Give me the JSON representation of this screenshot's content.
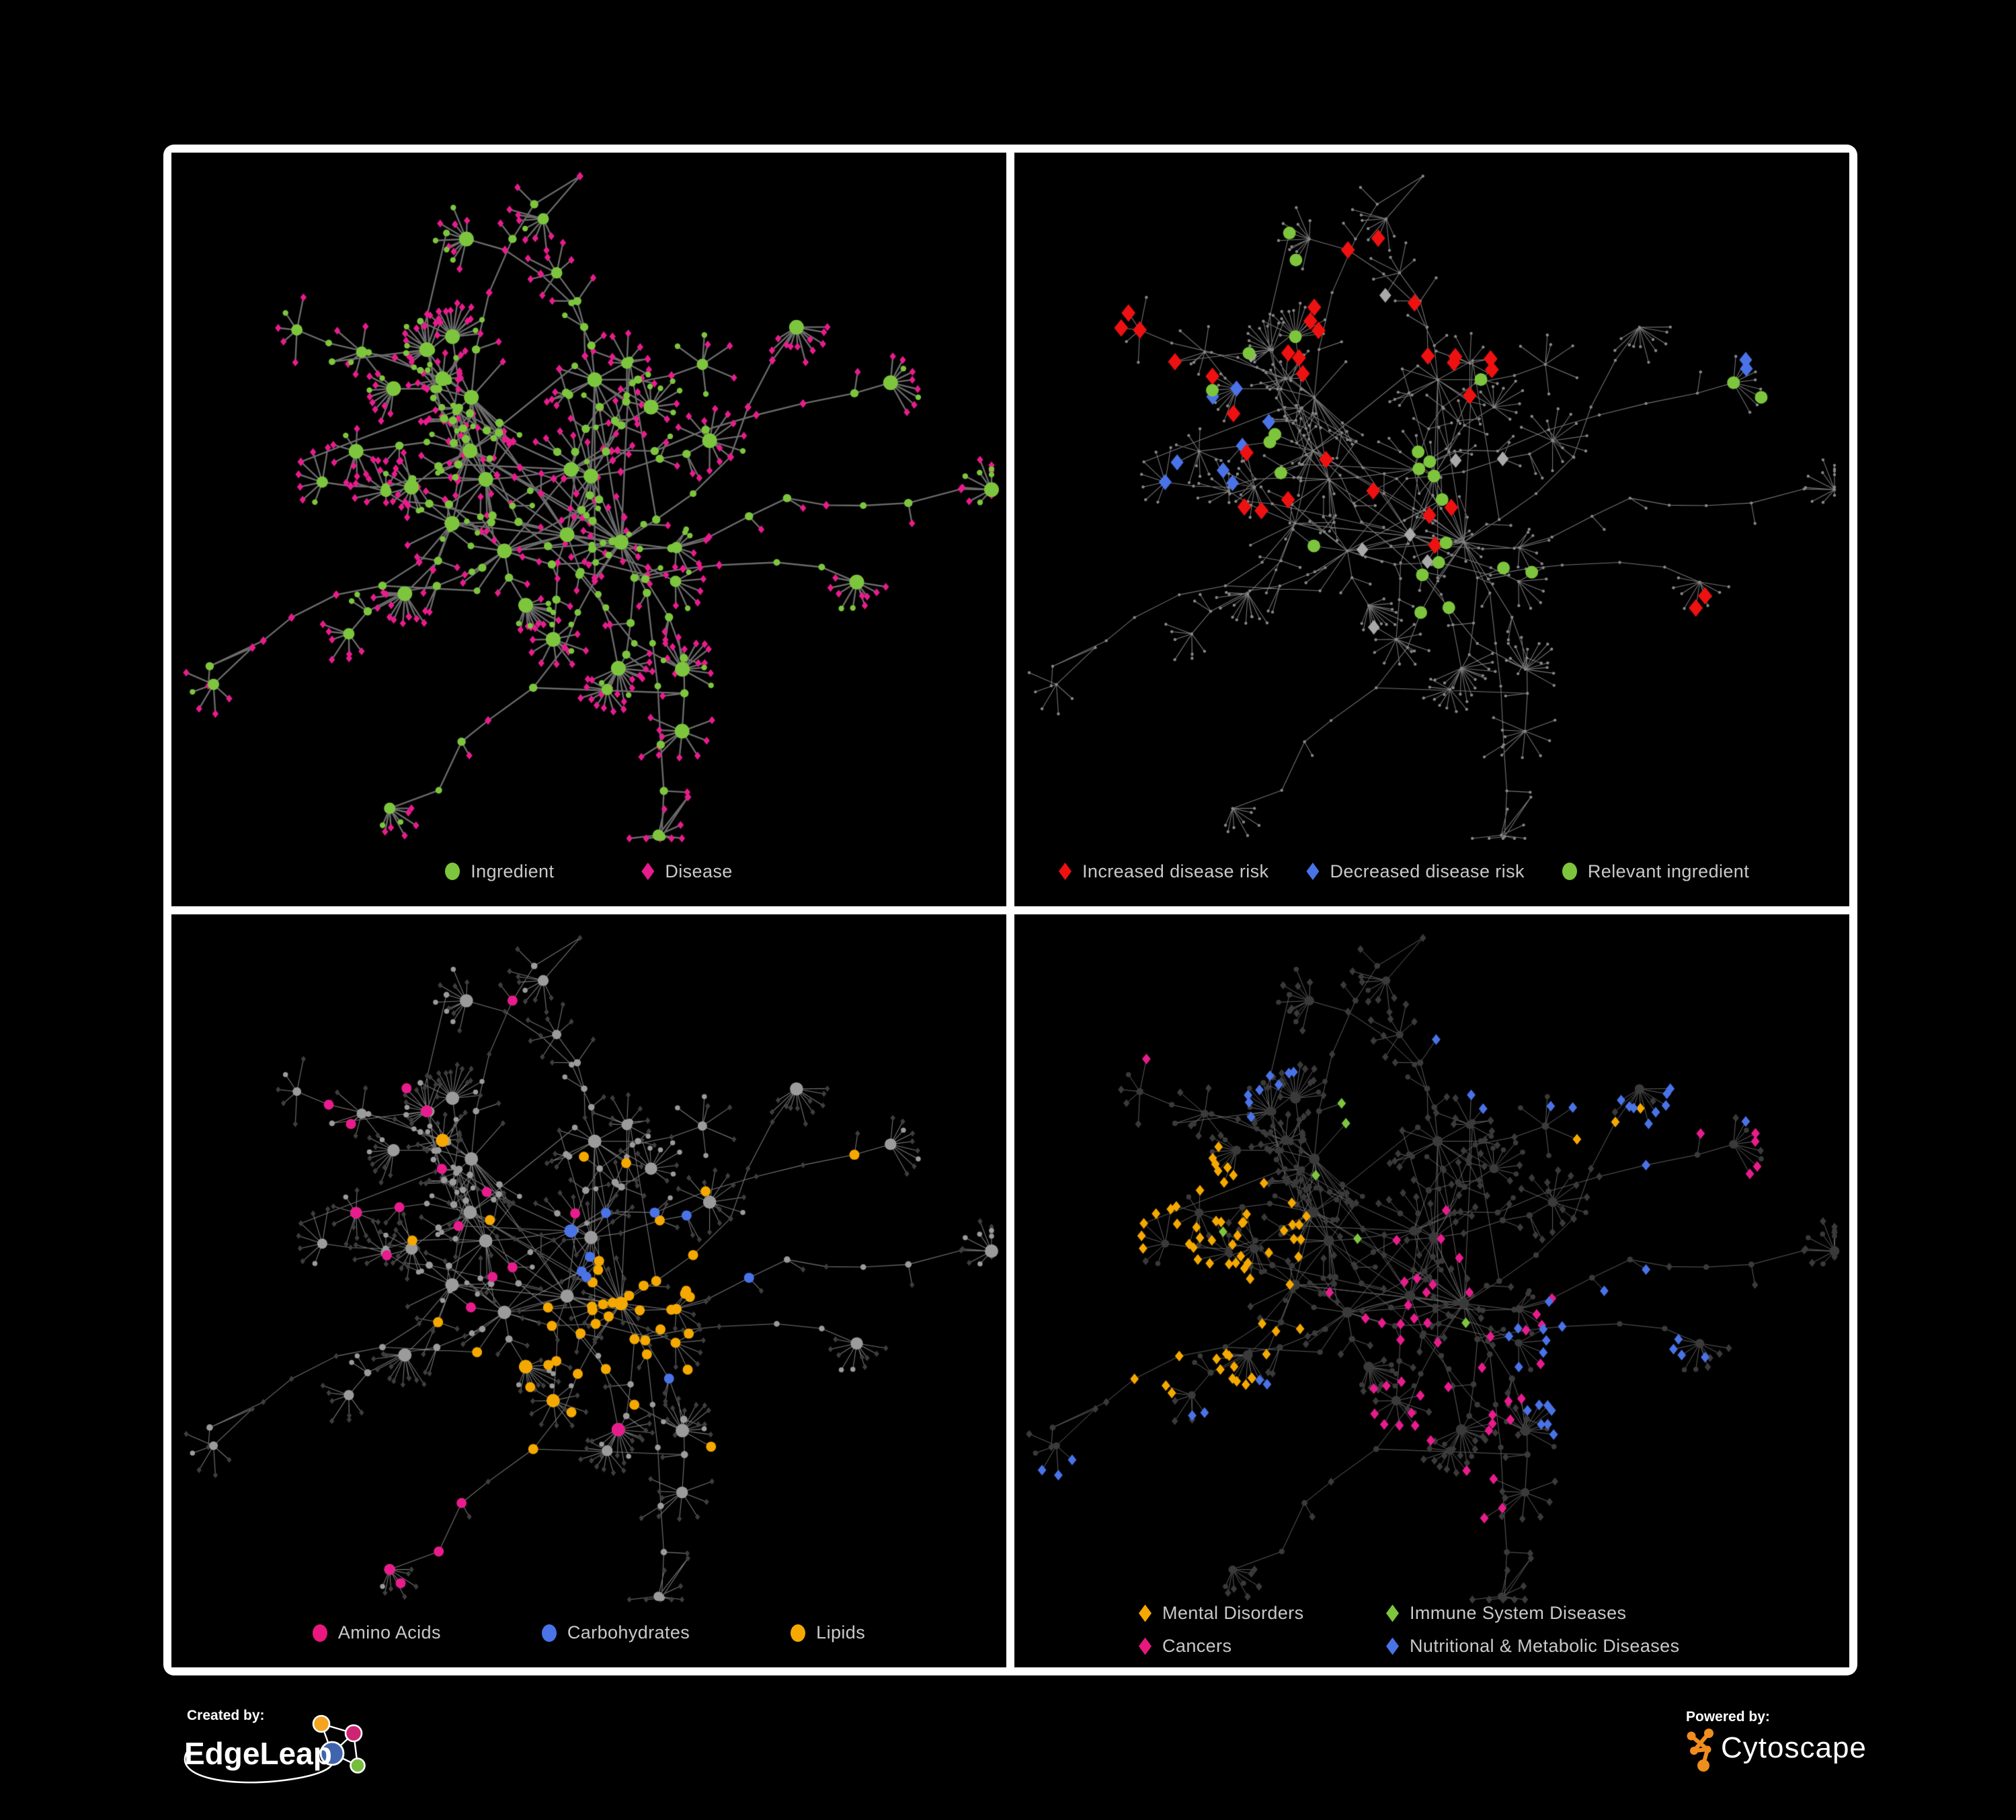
{
  "page": {
    "background": "#000000",
    "frame_color": "#ffffff"
  },
  "panels": [
    {
      "name": "ingredient-disease-network",
      "legend": [
        {
          "label": "Ingredient",
          "shape": "circle",
          "color": "#7dc53d"
        },
        {
          "label": "Disease",
          "shape": "diamond",
          "color": "#e81c8c"
        }
      ]
    },
    {
      "name": "disease-risk-network",
      "legend": [
        {
          "label": "Increased disease risk",
          "shape": "diamond",
          "color": "#ee1111"
        },
        {
          "label": "Decreased disease risk",
          "shape": "diamond",
          "color": "#4a73e8"
        },
        {
          "label": "Relevant ingredient",
          "shape": "circle",
          "color": "#7dc53d"
        }
      ]
    },
    {
      "name": "nutrient-class-network",
      "legend": [
        {
          "label": "Amino Acids",
          "shape": "circle",
          "color": "#e8187d"
        },
        {
          "label": "Carbohydrates",
          "shape": "circle",
          "color": "#4a73e8"
        },
        {
          "label": "Lipids",
          "shape": "circle",
          "color": "#f5a800"
        }
      ]
    },
    {
      "name": "disease-class-network",
      "legend": [
        {
          "label": "Mental Disorders",
          "shape": "diamond",
          "color": "#f5a800"
        },
        {
          "label": "Immune System Diseases",
          "shape": "diamond",
          "color": "#7dc53d"
        },
        {
          "label": "Cancers",
          "shape": "diamond",
          "color": "#e8187d"
        },
        {
          "label": "Nutritional & Metabolic Diseases",
          "shape": "diamond",
          "color": "#4a73e8"
        }
      ]
    }
  ],
  "footer": {
    "created_by": {
      "label": "Created by:",
      "name": "EdgeLeap"
    },
    "powered_by": {
      "label": "Powered by:",
      "name": "Cytoscape"
    }
  },
  "network": {
    "layout_seed": 1337,
    "palette": {
      "green": "#7dc53d",
      "pink": "#e81c8c",
      "red": "#ee1111",
      "blue": "#4a73e8",
      "orange": "#f5a800",
      "grayDiamond": "#a9a9a9",
      "edge1": "#6b6b6b",
      "edge2": "#7b7b7b",
      "edge3": "#8c8c8c",
      "edge4": "#696969",
      "dot2": "#878787",
      "ing3": "#9b9b9b",
      "dim3": "#3e3e3e",
      "dim4": "#3a3a3a"
    },
    "highlights": {
      "risk": {
        "red": [
          [
            500,
            330,
            280,
            26
          ],
          [
            1010,
            780,
            130,
            2
          ],
          [
            140,
            300,
            140,
            4
          ]
        ],
        "blue": [
          [
            235,
            390,
            150,
            8
          ],
          [
            1080,
            330,
            80,
            2
          ]
        ],
        "gray": [
          [
            430,
            430,
            340,
            8
          ]
        ],
        "green": [
          [
            610,
            390,
            350,
            22
          ],
          [
            120,
            290,
            100,
            2
          ],
          [
            1120,
            350,
            120,
            2
          ],
          [
            330,
            830,
            70,
            1
          ]
        ]
      },
      "nutrients": {
        "orange": [
          [
            740,
            560,
            120,
            30
          ],
          [
            600,
            650,
            100,
            10
          ],
          [
            870,
            800,
            70,
            6
          ],
          [
            620,
            470,
            420,
            12
          ]
        ],
        "blue": [
          [
            745,
            555,
            140,
            8
          ],
          [
            1060,
            790,
            40,
            1
          ],
          [
            80,
            360,
            40,
            1
          ],
          [
            630,
            420,
            60,
            2
          ]
        ],
        "pink": [
          [
            560,
            520,
            560,
            16
          ],
          [
            1050,
            960,
            140,
            5
          ],
          [
            400,
            900,
            120,
            4
          ]
        ]
      },
      "diseases": {
        "orange": [
          [
            264,
            520,
            190,
            64
          ],
          [
            860,
            270,
            80,
            3
          ],
          [
            570,
            950,
            60,
            2
          ],
          [
            120,
            160,
            70,
            2
          ]
        ],
        "pink": [
          [
            640,
            600,
            180,
            42
          ],
          [
            1080,
            290,
            95,
            5
          ],
          [
            680,
            910,
            100,
            4
          ],
          [
            210,
            170,
            60,
            2
          ]
        ],
        "blue": [
          [
            880,
            650,
            150,
            24
          ],
          [
            760,
            140,
            160,
            10
          ],
          [
            980,
            300,
            140,
            10
          ],
          [
            300,
            160,
            150,
            8
          ],
          [
            320,
            760,
            90,
            4
          ],
          [
            560,
            1000,
            70,
            3
          ],
          [
            95,
            820,
            80,
            3
          ],
          [
            1150,
            150,
            90,
            4
          ]
        ],
        "green": [
          [
            520,
            300,
            60,
            2
          ],
          [
            420,
            450,
            120,
            3
          ],
          [
            700,
            600,
            60,
            1
          ],
          [
            320,
            800,
            60,
            1
          ],
          [
            630,
            900,
            60,
            1
          ],
          [
            880,
            850,
            60,
            2
          ]
        ]
      }
    }
  }
}
